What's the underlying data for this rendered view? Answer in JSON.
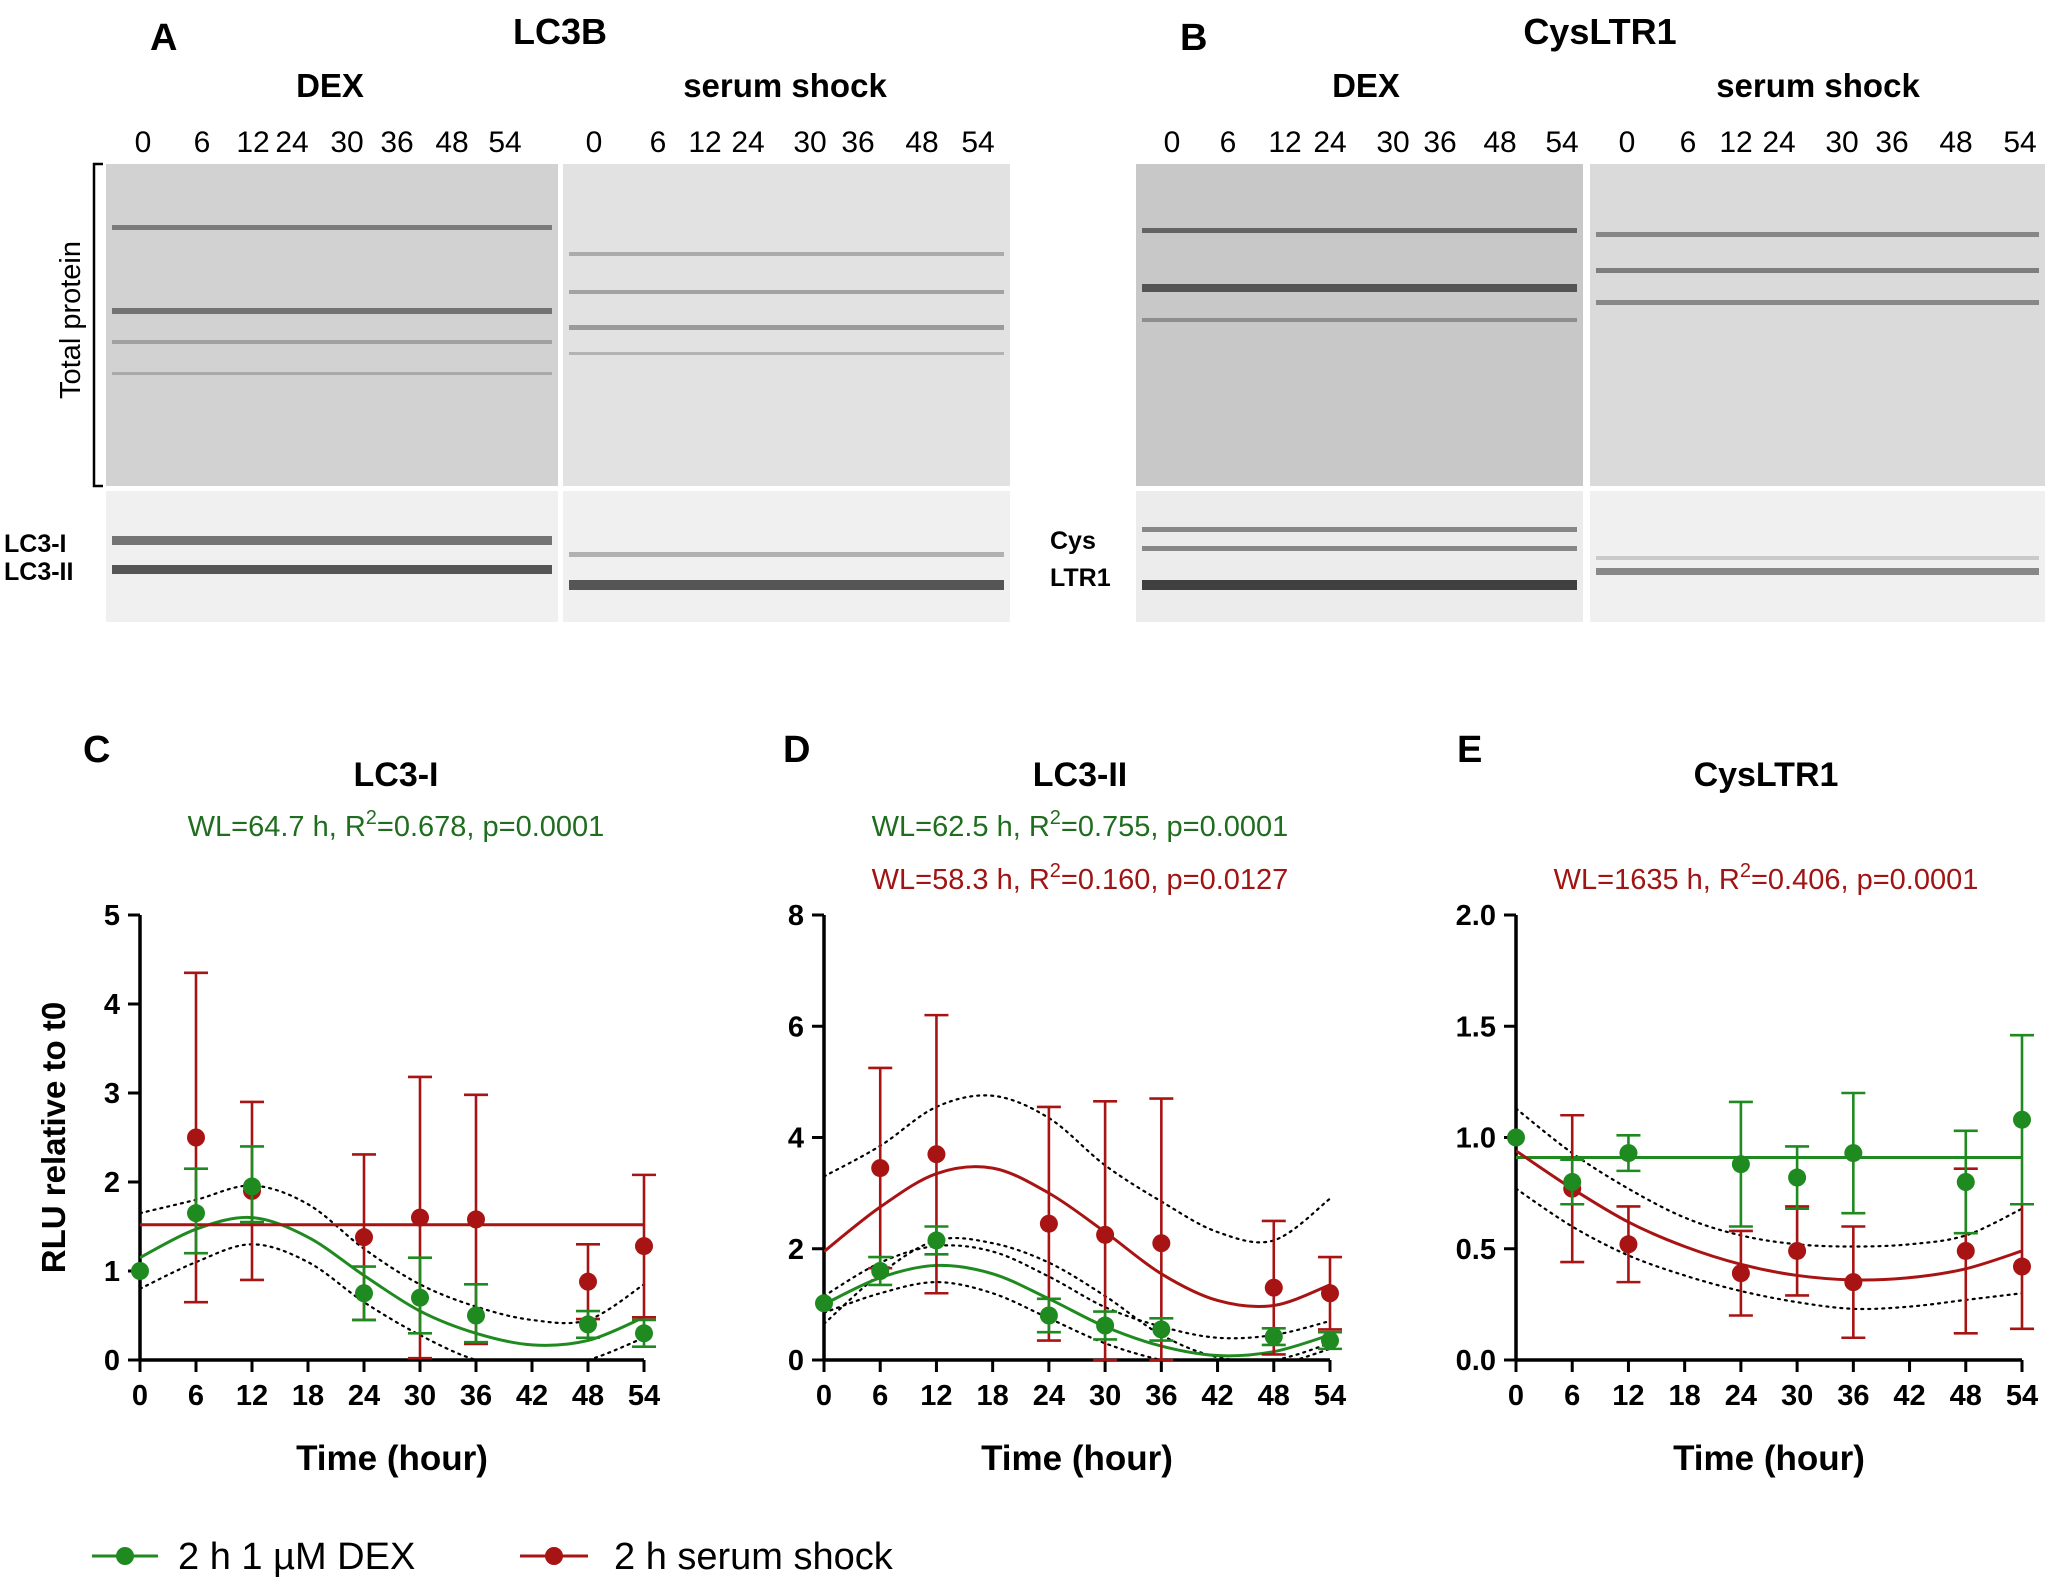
{
  "colors": {
    "dex": "#1f8a1f",
    "serum": "#a81414",
    "dex_text": "#1f6e1f",
    "serum_text": "#a01414",
    "blot_bg": "#e6e6e6"
  },
  "blots": {
    "A": {
      "panel_label": "A",
      "title": "LC3B",
      "groups": [
        "DEX",
        "serum shock"
      ],
      "lanes": [
        "0",
        "6",
        "12",
        "24",
        "30",
        "36",
        "48",
        "54"
      ],
      "bracket_label": "Total protein",
      "band_labels": [
        "LC3-I",
        "LC3-II"
      ]
    },
    "B": {
      "panel_label": "B",
      "title": "CysLTR1",
      "groups": [
        "DEX",
        "serum shock"
      ],
      "lanes": [
        "0",
        "6",
        "12",
        "24",
        "30",
        "36",
        "48",
        "54"
      ],
      "band_labels": [
        "Cys",
        "LTR1"
      ]
    }
  },
  "chart_data": [
    {
      "panel_label": "C",
      "type": "scatter",
      "title": "LC3-I",
      "annotations": [
        {
          "series": "dex",
          "text": "WL=64.7 h, R",
          "sup": "2",
          "rest": "=0.678, p=0.0001"
        }
      ],
      "xlabel": "Time (hour)",
      "ylabel": "RLU relative to t0",
      "xlim": [
        0,
        54
      ],
      "ylim": [
        0,
        5
      ],
      "xticks": [
        0,
        6,
        12,
        18,
        24,
        30,
        36,
        42,
        48,
        54
      ],
      "yticks": [
        "0",
        "1",
        "2",
        "3",
        "4",
        "5"
      ],
      "series": [
        {
          "name": "2 h 1 µM DEX",
          "key": "dex",
          "x": [
            0,
            6,
            12,
            24,
            30,
            36,
            48,
            54
          ],
          "y": [
            1.0,
            1.65,
            1.95,
            0.75,
            0.7,
            0.5,
            0.4,
            0.3
          ],
          "err_up": [
            0.0,
            0.5,
            0.45,
            0.3,
            0.45,
            0.35,
            0.15,
            0.15
          ],
          "err_dn": [
            0.0,
            0.45,
            0.4,
            0.3,
            0.4,
            0.3,
            0.15,
            0.15
          ]
        },
        {
          "name": "2 h serum shock",
          "key": "serum",
          "x": [
            6,
            12,
            24,
            30,
            36,
            48,
            54
          ],
          "y": [
            2.5,
            1.9,
            1.38,
            1.6,
            1.58,
            0.88,
            1.28
          ],
          "err_up": [
            1.85,
            1.0,
            0.93,
            1.58,
            1.4,
            0.42,
            0.8
          ],
          "err_dn": [
            1.85,
            1.0,
            0.93,
            1.58,
            1.4,
            0.42,
            0.8
          ]
        }
      ],
      "fits": [
        {
          "series": "dex",
          "kind": "sine",
          "points": [
            [
              0,
              1.15
            ],
            [
              6,
              1.47
            ],
            [
              12,
              1.6
            ],
            [
              18,
              1.38
            ],
            [
              24,
              0.95
            ],
            [
              30,
              0.55
            ],
            [
              36,
              0.3
            ],
            [
              42,
              0.17
            ],
            [
              48,
              0.22
            ],
            [
              54,
              0.48
            ]
          ]
        },
        {
          "series": "serum",
          "kind": "flat",
          "points": [
            [
              0,
              1.52
            ],
            [
              54,
              1.52
            ]
          ]
        }
      ],
      "bands": [
        {
          "series": "dex",
          "upper": [
            [
              0,
              1.65
            ],
            [
              6,
              1.8
            ],
            [
              12,
              1.96
            ],
            [
              18,
              1.75
            ],
            [
              24,
              1.25
            ],
            [
              30,
              0.85
            ],
            [
              36,
              0.6
            ],
            [
              42,
              0.45
            ],
            [
              48,
              0.45
            ],
            [
              54,
              0.85
            ]
          ],
          "lower": [
            [
              0,
              0.8
            ],
            [
              6,
              1.1
            ],
            [
              12,
              1.3
            ],
            [
              18,
              1.1
            ],
            [
              24,
              0.65
            ],
            [
              30,
              0.28
            ],
            [
              36,
              0.0
            ],
            [
              42,
              -0.1
            ],
            [
              48,
              0.0
            ],
            [
              54,
              0.25
            ]
          ]
        }
      ]
    },
    {
      "panel_label": "D",
      "type": "scatter",
      "title": "LC3-II",
      "annotations": [
        {
          "series": "dex",
          "text": "WL=62.5 h, R",
          "sup": "2",
          "rest": "=0.755, p=0.0001"
        },
        {
          "series": "serum",
          "text": "WL=58.3 h, R",
          "sup": "2",
          "rest": "=0.160, p=0.0127"
        }
      ],
      "xlabel": "Time (hour)",
      "ylabel": "",
      "xlim": [
        0,
        54
      ],
      "ylim": [
        0,
        8
      ],
      "xticks": [
        0,
        6,
        12,
        18,
        24,
        30,
        36,
        42,
        48,
        54
      ],
      "yticks": [
        "0",
        "2",
        "4",
        "6",
        "8"
      ],
      "series": [
        {
          "name": "2 h 1 µM DEX",
          "key": "dex",
          "x": [
            0,
            6,
            12,
            24,
            30,
            36,
            48,
            54
          ],
          "y": [
            1.02,
            1.6,
            2.15,
            0.8,
            0.62,
            0.55,
            0.42,
            0.35
          ],
          "err_up": [
            0.0,
            0.25,
            0.25,
            0.3,
            0.25,
            0.2,
            0.15,
            0.15
          ],
          "err_dn": [
            0.0,
            0.25,
            0.25,
            0.3,
            0.25,
            0.2,
            0.15,
            0.15
          ]
        },
        {
          "name": "2 h serum shock",
          "key": "serum",
          "x": [
            6,
            12,
            24,
            30,
            36,
            48,
            54
          ],
          "y": [
            3.45,
            3.7,
            2.45,
            2.25,
            2.1,
            1.3,
            1.2
          ],
          "err_up": [
            1.8,
            2.5,
            2.1,
            2.4,
            2.6,
            1.2,
            0.65
          ],
          "err_dn": [
            1.8,
            2.5,
            2.1,
            2.4,
            2.6,
            1.2,
            0.65
          ]
        }
      ],
      "fits": [
        {
          "series": "dex",
          "kind": "sine",
          "points": [
            [
              0,
              1.0
            ],
            [
              6,
              1.48
            ],
            [
              12,
              1.7
            ],
            [
              18,
              1.55
            ],
            [
              24,
              1.1
            ],
            [
              30,
              0.6
            ],
            [
              36,
              0.25
            ],
            [
              42,
              0.08
            ],
            [
              48,
              0.15
            ],
            [
              54,
              0.45
            ]
          ]
        },
        {
          "series": "serum",
          "kind": "sine",
          "points": [
            [
              0,
              1.95
            ],
            [
              6,
              2.75
            ],
            [
              12,
              3.35
            ],
            [
              18,
              3.45
            ],
            [
              24,
              3.0
            ],
            [
              30,
              2.3
            ],
            [
              36,
              1.55
            ],
            [
              42,
              1.07
            ],
            [
              48,
              0.98
            ],
            [
              54,
              1.35
            ]
          ]
        }
      ],
      "bands": [
        {
          "series": "dex",
          "upper": [
            [
              0,
              1.15
            ],
            [
              6,
              1.75
            ],
            [
              12,
              2.05
            ],
            [
              18,
              1.95
            ],
            [
              24,
              1.5
            ],
            [
              30,
              0.95
            ],
            [
              36,
              0.6
            ],
            [
              42,
              0.4
            ],
            [
              48,
              0.45
            ],
            [
              54,
              0.7
            ]
          ],
          "lower": [
            [
              0,
              0.85
            ],
            [
              6,
              1.2
            ],
            [
              12,
              1.4
            ],
            [
              18,
              1.2
            ],
            [
              24,
              0.75
            ],
            [
              30,
              0.3
            ],
            [
              36,
              0.0
            ],
            [
              42,
              -0.15
            ],
            [
              48,
              -0.1
            ],
            [
              54,
              0.2
            ]
          ]
        },
        {
          "series": "serum",
          "upper": [
            [
              0,
              3.3
            ],
            [
              6,
              3.85
            ],
            [
              12,
              4.55
            ],
            [
              18,
              4.75
            ],
            [
              24,
              4.35
            ],
            [
              30,
              3.5
            ],
            [
              36,
              2.85
            ],
            [
              42,
              2.3
            ],
            [
              48,
              2.15
            ],
            [
              54,
              2.9
            ]
          ],
          "lower": [
            [
              0,
              0.65
            ],
            [
              6,
              1.55
            ],
            [
              12,
              2.15
            ],
            [
              18,
              2.1
            ],
            [
              24,
              1.75
            ],
            [
              30,
              1.15
            ],
            [
              36,
              0.45
            ],
            [
              42,
              0.05
            ],
            [
              48,
              0.0
            ],
            [
              54,
              0.3
            ]
          ]
        }
      ]
    },
    {
      "panel_label": "E",
      "type": "scatter",
      "title": "CysLTR1",
      "annotations": [
        {
          "series": "serum",
          "text": "WL=1635 h, R",
          "sup": "2",
          "rest": "=0.406, p=0.0001"
        }
      ],
      "xlabel": "Time (hour)",
      "ylabel": "",
      "xlim": [
        0,
        54
      ],
      "ylim": [
        0,
        2.0
      ],
      "xticks": [
        0,
        6,
        12,
        18,
        24,
        30,
        36,
        42,
        48,
        54
      ],
      "yticks": [
        "0.0",
        "0.5",
        "1.0",
        "1.5",
        "2.0"
      ],
      "series": [
        {
          "name": "2 h 1 µM DEX",
          "key": "dex",
          "x": [
            0,
            6,
            12,
            24,
            30,
            36,
            48,
            54
          ],
          "y": [
            1.0,
            0.8,
            0.93,
            0.88,
            0.82,
            0.93,
            0.8,
            1.08
          ],
          "err_up": [
            0.0,
            0.1,
            0.08,
            0.28,
            0.14,
            0.27,
            0.23,
            0.38
          ],
          "err_dn": [
            0.0,
            0.1,
            0.08,
            0.28,
            0.14,
            0.27,
            0.23,
            0.38
          ]
        },
        {
          "name": "2 h serum shock",
          "key": "serum",
          "x": [
            6,
            12,
            24,
            30,
            36,
            48,
            54
          ],
          "y": [
            0.77,
            0.52,
            0.39,
            0.49,
            0.35,
            0.49,
            0.42
          ],
          "err_up": [
            0.33,
            0.17,
            0.19,
            0.2,
            0.25,
            0.37,
            0.28
          ],
          "err_dn": [
            0.33,
            0.17,
            0.19,
            0.2,
            0.25,
            0.37,
            0.28
          ]
        }
      ],
      "fits": [
        {
          "series": "dex",
          "kind": "flat",
          "points": [
            [
              0,
              0.91
            ],
            [
              54,
              0.91
            ]
          ]
        },
        {
          "series": "serum",
          "kind": "curve",
          "points": [
            [
              0,
              0.94
            ],
            [
              6,
              0.77
            ],
            [
              12,
              0.62
            ],
            [
              18,
              0.51
            ],
            [
              24,
              0.43
            ],
            [
              30,
              0.38
            ],
            [
              36,
              0.36
            ],
            [
              42,
              0.37
            ],
            [
              48,
              0.41
            ],
            [
              54,
              0.49
            ]
          ]
        }
      ],
      "bands": [
        {
          "series": "serum",
          "upper": [
            [
              0,
              1.13
            ],
            [
              6,
              0.93
            ],
            [
              12,
              0.77
            ],
            [
              18,
              0.64
            ],
            [
              24,
              0.56
            ],
            [
              30,
              0.52
            ],
            [
              36,
              0.51
            ],
            [
              42,
              0.52
            ],
            [
              48,
              0.56
            ],
            [
              54,
              0.68
            ]
          ],
          "lower": [
            [
              0,
              0.77
            ],
            [
              6,
              0.6
            ],
            [
              12,
              0.47
            ],
            [
              18,
              0.38
            ],
            [
              24,
              0.31
            ],
            [
              30,
              0.26
            ],
            [
              36,
              0.23
            ],
            [
              42,
              0.24
            ],
            [
              48,
              0.27
            ],
            [
              54,
              0.3
            ]
          ]
        }
      ]
    }
  ],
  "legend": [
    {
      "key": "dex",
      "label": "2 h 1 µM DEX"
    },
    {
      "key": "serum",
      "label": "2 h serum shock"
    }
  ]
}
